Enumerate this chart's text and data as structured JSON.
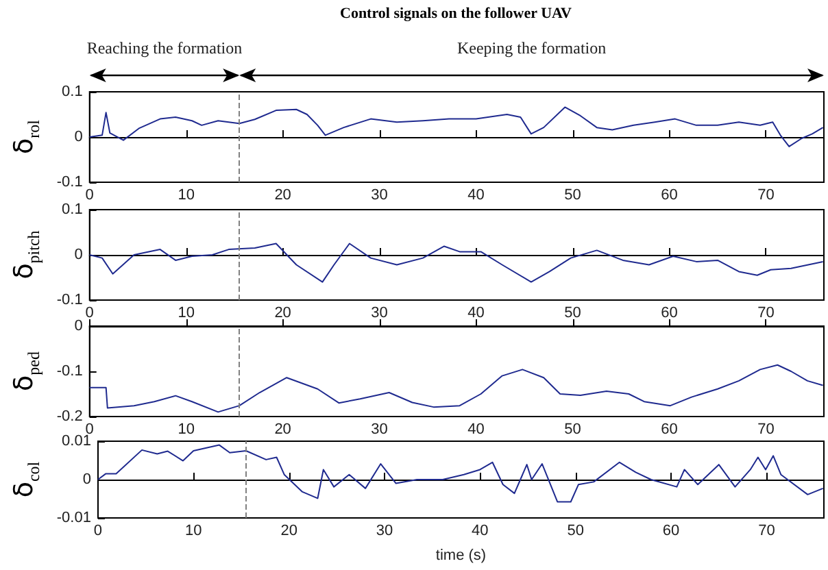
{
  "chart_data": [
    {
      "type": "line",
      "title": "Control signals on the follower UAV",
      "annotations": [
        "Reaching the formation",
        "Keeping the formation"
      ],
      "ylabel": "δ$_{rol}$",
      "x": [
        0,
        1.3,
        1.7,
        2.1,
        3.5,
        5.1,
        7.3,
        8.9,
        10.6,
        11.6,
        13.3,
        15.5,
        17.1,
        19.3,
        21.4,
        22.5,
        23.6,
        24.4,
        26.3,
        29.1,
        31.8,
        34.5,
        37.2,
        40,
        43.2,
        44.6,
        45.7,
        47,
        49.2,
        50.8,
        52.5,
        54.1,
        56.3,
        58.5,
        60.6,
        62.8,
        65,
        67.2,
        69.4,
        70.7,
        71.5,
        72.4,
        73.7,
        74.8,
        75.9
      ],
      "values": [
        0,
        0.004,
        0.054,
        0.009,
        -0.007,
        0.019,
        0.04,
        0.044,
        0.036,
        0.026,
        0.036,
        0.03,
        0.039,
        0.059,
        0.061,
        0.05,
        0.026,
        0.004,
        0.021,
        0.04,
        0.033,
        0.036,
        0.04,
        0.04,
        0.05,
        0.044,
        0.007,
        0.021,
        0.066,
        0.047,
        0.021,
        0.016,
        0.026,
        0.033,
        0.04,
        0.026,
        0.026,
        0.033,
        0.026,
        0.033,
        0.004,
        -0.021,
        -0.003,
        0.007,
        0.021
      ],
      "color": "#1f2a8f",
      "marker": "none",
      "xlim": [
        0,
        76
      ],
      "xticks": [
        0,
        10,
        20,
        30,
        40,
        50,
        60,
        70
      ],
      "ylim": [
        -0.1,
        0.1
      ],
      "yticks": [
        -0.1,
        0,
        0.1
      ],
      "ref_lines": [
        {
          "axis": "x",
          "value": 15.5,
          "color": "#808080",
          "line_style": "dashed"
        }
      ]
    },
    {
      "type": "line",
      "ylabel": "δ$_{pitch}$",
      "x": [
        0,
        1.3,
        2.4,
        4.6,
        7.3,
        8.9,
        10.6,
        12.7,
        14.4,
        17.1,
        19.3,
        21.4,
        24.1,
        25.3,
        26.9,
        29.1,
        31.8,
        34.5,
        36.7,
        38.3,
        40.5,
        42.7,
        45.7,
        47.6,
        49.8,
        52.5,
        55.2,
        57.9,
        60.4,
        62.8,
        65,
        67.2,
        69.1,
        70.5,
        72.6,
        75.9
      ],
      "values": [
        0,
        -0.007,
        -0.042,
        0,
        0.012,
        -0.012,
        -0.003,
        0,
        0.012,
        0.015,
        0.025,
        -0.022,
        -0.06,
        -0.022,
        0.025,
        -0.007,
        -0.022,
        -0.007,
        0.019,
        0.007,
        0.007,
        -0.022,
        -0.06,
        -0.037,
        -0.007,
        0.01,
        -0.012,
        -0.022,
        -0.003,
        -0.015,
        -0.012,
        -0.037,
        -0.045,
        -0.033,
        -0.03,
        -0.015
      ],
      "color": "#1f2a8f",
      "marker": "none",
      "xlim": [
        0,
        76
      ],
      "xticks": [
        0,
        10,
        20,
        30,
        40,
        50,
        60,
        70
      ],
      "ylim": [
        -0.1,
        0.1
      ],
      "yticks": [
        -0.1,
        0,
        0.1
      ],
      "ref_lines": [
        {
          "axis": "x",
          "value": 15.5,
          "color": "#808080",
          "line_style": "dashed"
        }
      ]
    },
    {
      "type": "line",
      "ylabel": "δ$_{ped}$",
      "x": [
        0,
        1.7,
        1.85,
        4.6,
        6.7,
        8.9,
        10.6,
        13.3,
        15.5,
        17.6,
        20.4,
        23.6,
        25.8,
        28,
        31,
        33.4,
        35.6,
        38.3,
        40.5,
        42.7,
        44.8,
        47,
        48.7,
        50.8,
        53.5,
        55.8,
        57.4,
        60.1,
        62.3,
        65,
        67.2,
        69.4,
        71.2,
        72.6,
        74.3,
        75.9
      ],
      "values": [
        -0.136,
        -0.136,
        -0.181,
        -0.176,
        -0.167,
        -0.154,
        -0.167,
        -0.19,
        -0.176,
        -0.147,
        -0.114,
        -0.139,
        -0.17,
        -0.161,
        -0.147,
        -0.169,
        -0.179,
        -0.176,
        -0.15,
        -0.11,
        -0.096,
        -0.114,
        -0.15,
        -0.153,
        -0.144,
        -0.15,
        -0.167,
        -0.176,
        -0.157,
        -0.139,
        -0.121,
        -0.096,
        -0.086,
        -0.1,
        -0.121,
        -0.131
      ],
      "color": "#1f2a8f",
      "marker": "none",
      "xlim": [
        0,
        76
      ],
      "xticks": [
        0,
        10,
        20,
        30,
        40,
        50,
        60,
        70
      ],
      "ylim": [
        -0.2,
        0
      ],
      "yticks": [
        -0.2,
        -0.1,
        0
      ],
      "ref_lines": [
        {
          "axis": "x",
          "value": 15.5,
          "color": "#808080",
          "line_style": "dashed"
        }
      ]
    },
    {
      "type": "line",
      "ylabel": "δ$_{col}$",
      "xlabel": "time (s)",
      "x": [
        0,
        0.8,
        1.9,
        4.6,
        6.2,
        7.3,
        8.9,
        10,
        12.7,
        13.8,
        15.5,
        17.6,
        18.7,
        19.5,
        21.4,
        23,
        23.6,
        24.7,
        26.3,
        28,
        29.6,
        31.2,
        33.4,
        36.1,
        38.3,
        40,
        41.3,
        42.4,
        43.6,
        44.9,
        45.4,
        46.5,
        48.1,
        49.5,
        50.3,
        51.9,
        54.6,
        56.3,
        57.9,
        60.6,
        61.4,
        62.8,
        65,
        66.7,
        68.3,
        69.1,
        69.9,
        70.7,
        71.5,
        74.3,
        75.9
      ],
      "values": [
        0,
        0.0015,
        0.0015,
        0.0077,
        0.0067,
        0.0074,
        0.0049,
        0.0075,
        0.009,
        0.007,
        0.0075,
        0.0052,
        0.0058,
        0.0013,
        -0.0032,
        -0.0049,
        0.0026,
        -0.0019,
        0.0013,
        -0.0023,
        0.0041,
        -0.001,
        0,
        0,
        0.0013,
        0.0026,
        0.0045,
        -0.0013,
        -0.0036,
        0.0039,
        0,
        0.0041,
        -0.0058,
        -0.0058,
        -0.0013,
        -0.0006,
        0.0045,
        0.0019,
        0,
        -0.0019,
        0.0026,
        -0.0013,
        0.0039,
        -0.0019,
        0.0026,
        0.0058,
        0.0026,
        0.0062,
        0.0013,
        -0.0039,
        -0.0023
      ],
      "color": "#1f2a8f",
      "marker": "none",
      "xlim": [
        0,
        76
      ],
      "xticks": [
        0,
        10,
        20,
        30,
        40,
        50,
        60,
        70
      ],
      "ylim": [
        -0.01,
        0.01
      ],
      "yticks": [
        -0.01,
        0,
        0.01
      ],
      "ref_lines": [
        {
          "axis": "x",
          "value": 15.5,
          "color": "#808080",
          "line_style": "dashed"
        }
      ]
    }
  ]
}
